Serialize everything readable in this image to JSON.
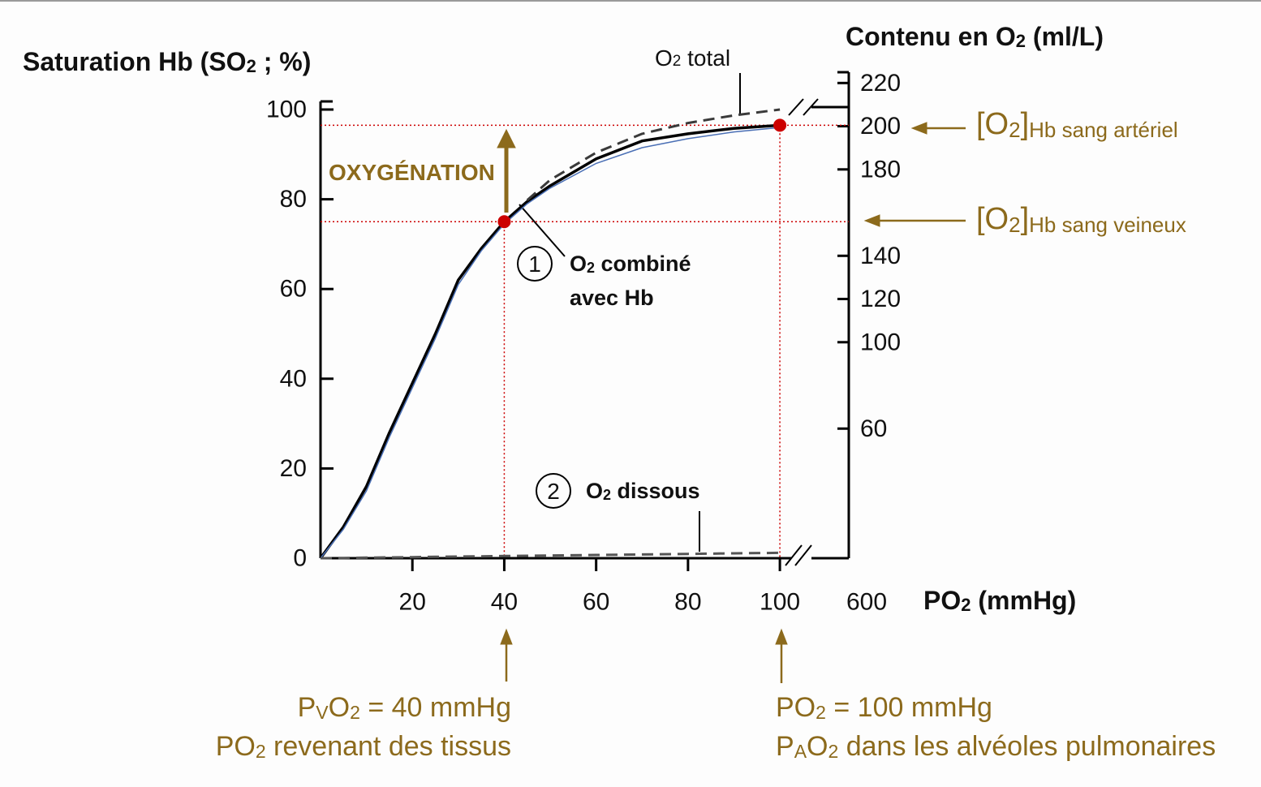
{
  "chart_data": {
    "type": "line",
    "y_label": [
      "Saturation Hb (SO",
      "2",
      " ; %)"
    ],
    "y2_label": [
      "Contenu en O",
      "2",
      " (ml/L)"
    ],
    "x_label": [
      "PO",
      "2",
      " (mmHg)"
    ],
    "x_break_label": "600",
    "xlim": [
      0,
      115
    ],
    "xticks": [
      20,
      40,
      60,
      80,
      100
    ],
    "ylim": [
      0,
      100
    ],
    "yticks": [
      0,
      20,
      40,
      60,
      80,
      100
    ],
    "y2lim": [
      0,
      225
    ],
    "y2ticks": [
      60,
      100,
      120,
      140,
      180,
      200,
      220
    ],
    "x": [
      0,
      5,
      10,
      15,
      20,
      25,
      30,
      35,
      40,
      45,
      50,
      60,
      70,
      80,
      90,
      100
    ],
    "series": [
      {
        "color": "#000000",
        "style": "solid",
        "values": [
          0,
          7,
          16,
          28,
          39,
          50,
          62,
          69,
          75,
          79.5,
          83,
          89,
          93,
          94.6,
          95.8,
          96.5
        ]
      },
      {
        "color": "#4a6fb5",
        "style": "thin",
        "values": [
          0,
          6.5,
          15,
          27,
          38,
          49,
          61,
          68.5,
          74.5,
          79,
          82.5,
          88,
          91.5,
          93.5,
          95,
          96
        ]
      },
      {
        "color": "#3a3a3a",
        "style": "dashed",
        "values": [
          null,
          null,
          null,
          null,
          null,
          null,
          null,
          null,
          null,
          79.8,
          84.3,
          90.4,
          94.6,
          97,
          98.7,
          100
        ]
      },
      {
        "color": "#555555",
        "style": "dashed",
        "values": [
          0,
          0.06,
          0.12,
          0.18,
          0.24,
          0.3,
          0.36,
          0.42,
          0.48,
          0.54,
          0.6,
          0.72,
          0.84,
          0.96,
          1.08,
          1.2
        ]
      }
    ],
    "markers": {
      "color": "#cc0000",
      "points": [
        {
          "x": 40,
          "y": 75
        },
        {
          "x": 100,
          "y": 96.5
        }
      ]
    },
    "annotations": {
      "o2_total": [
        "O",
        "2",
        " total"
      ],
      "oxygenation": [
        "OXYGÉNATION"
      ],
      "num1": [
        "1"
      ],
      "combined": [
        "O",
        "2",
        " combiné"
      ],
      "combined2": [
        "avec Hb"
      ],
      "num2": [
        "2"
      ],
      "dissolved": [
        "O",
        "2",
        " dissous"
      ],
      "arterial": [
        "[O",
        "2",
        "]",
        "Hb sang artériel"
      ],
      "venous": [
        "[O",
        "2",
        "]",
        "Hb sang veineux"
      ],
      "venous_note": [
        "P",
        "V",
        "O",
        "2",
        " = 40 mmHg"
      ],
      "venous_note2": [
        "PO",
        "2",
        " revenant des tissus"
      ],
      "arterial_note": [
        "PO",
        "2",
        " = 100 mmHg"
      ],
      "arterial_note2": [
        "P",
        "A",
        "O",
        "2",
        " dans les alvéoles pulmonaires"
      ]
    }
  }
}
